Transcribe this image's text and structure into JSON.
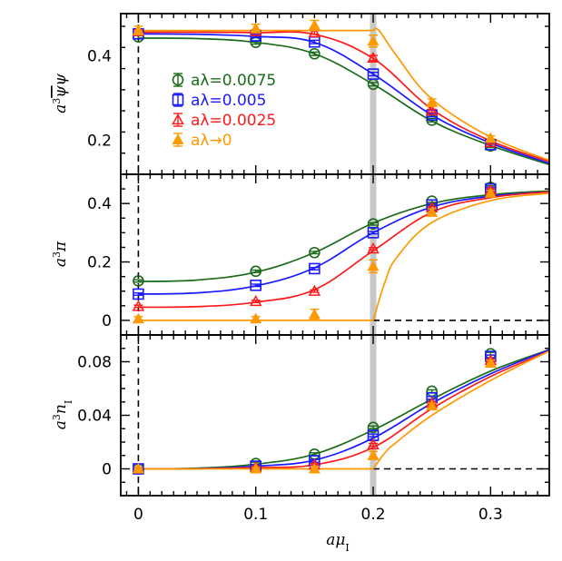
{
  "chart_data": {
    "type": "scatter",
    "x_axis": {
      "label": "aμ_I",
      "range": [
        -0.015,
        0.35
      ],
      "ticks": [
        0,
        0.1,
        0.2,
        0.3
      ],
      "tick_labels": [
        "0",
        "0.1",
        "0.2",
        "0.3"
      ]
    },
    "critical_point": 0.2,
    "colors": {
      "l0075": "#1a6b1a",
      "l005": "#1a1aff",
      "l0025": "#ff1a1a",
      "l0": "#ff9900",
      "band": "#c8c8c8"
    },
    "legend": [
      {
        "key": "l0075",
        "label": "aλ=0.0075"
      },
      {
        "key": "l005",
        "label": "aλ=0.005"
      },
      {
        "key": "l0025",
        "label": "aλ=0.0025"
      },
      {
        "key": "l0",
        "label": "aλ→0"
      }
    ],
    "panels": [
      {
        "id": "pbp",
        "ylabel": "a³ψ̄ψ",
        "ylim": [
          0.12,
          0.5
        ],
        "yticks": [
          0.2,
          0.4
        ],
        "ytick_labels": [
          "0.2",
          "0.4"
        ],
        "x": [
          0,
          0.1,
          0.15,
          0.2,
          0.25,
          0.3
        ],
        "series": [
          {
            "key": "l0075",
            "marker": "circle",
            "values": [
              0.445,
              0.432,
              0.405,
              0.333,
              0.248,
              0.187
            ],
            "err": [
              0.004,
              0.004,
              0.004,
              0.004,
              0.004,
              0.004
            ]
          },
          {
            "key": "l005",
            "marker": "square",
            "values": [
              0.452,
              0.447,
              0.433,
              0.357,
              0.26,
              0.19
            ],
            "err": [
              0.004,
              0.004,
              0.004,
              0.004,
              0.004,
              0.004
            ]
          },
          {
            "key": "l0025",
            "marker": "triangle",
            "values": [
              0.458,
              0.458,
              0.455,
              0.395,
              0.27,
              0.195
            ],
            "err": [
              0.004,
              0.004,
              0.004,
              0.006,
              0.004,
              0.004
            ]
          },
          {
            "key": "l0",
            "marker": "filled-triangle",
            "values": [
              0.46,
              0.465,
              0.472,
              0.435,
              0.29,
              0.205
            ],
            "err": [
              0.01,
              0.01,
              0.012,
              0.014,
              0.008,
              0.006
            ]
          }
        ],
        "curves": [
          {
            "key": "l0075",
            "x": [
              0,
              0.05,
              0.1,
              0.15,
              0.2,
              0.25,
              0.3,
              0.35
            ],
            "y": [
              0.442,
              0.441,
              0.432,
              0.405,
              0.333,
              0.246,
              0.188,
              0.143
            ]
          },
          {
            "key": "l005",
            "x": [
              0,
              0.05,
              0.1,
              0.15,
              0.2,
              0.25,
              0.3,
              0.35
            ],
            "y": [
              0.452,
              0.451,
              0.446,
              0.432,
              0.357,
              0.26,
              0.194,
              0.146
            ]
          },
          {
            "key": "l0025",
            "x": [
              0,
              0.05,
              0.1,
              0.15,
              0.2,
              0.25,
              0.3,
              0.35
            ],
            "y": [
              0.456,
              0.456,
              0.455,
              0.451,
              0.394,
              0.274,
              0.199,
              0.15
            ]
          },
          {
            "key": "l0",
            "x": [
              0,
              0.1,
              0.2,
              0.205,
              0.22,
              0.25,
              0.3,
              0.35
            ],
            "y": [
              0.46,
              0.46,
              0.46,
              0.46,
              0.4,
              0.298,
              0.208,
              0.153
            ]
          }
        ]
      },
      {
        "id": "pi",
        "ylabel": "a³π",
        "ylim": [
          -0.05,
          0.5
        ],
        "yticks": [
          0,
          0.2,
          0.4
        ],
        "ytick_labels": [
          "0",
          "0.2",
          "0.4"
        ],
        "zero_line": true,
        "x": [
          0,
          0.1,
          0.15,
          0.2,
          0.25,
          0.3
        ],
        "series": [
          {
            "key": "l0075",
            "marker": "circle",
            "values": [
              0.135,
              0.168,
              0.232,
              0.33,
              0.408,
              0.455
            ],
            "err": [
              0.004,
              0.004,
              0.004,
              0.004,
              0.004,
              0.006
            ]
          },
          {
            "key": "l005",
            "marker": "square",
            "values": [
              0.09,
              0.12,
              0.177,
              0.3,
              0.395,
              0.45
            ],
            "err": [
              0.004,
              0.004,
              0.004,
              0.004,
              0.004,
              0.006
            ]
          },
          {
            "key": "l0025",
            "marker": "triangle",
            "values": [
              0.048,
              0.065,
              0.1,
              0.245,
              0.385,
              0.445
            ],
            "err": [
              0.004,
              0.004,
              0.004,
              0.004,
              0.004,
              0.006
            ]
          },
          {
            "key": "l0",
            "marker": "filled-triangle",
            "values": [
              0.005,
              0.005,
              0.02,
              0.185,
              0.37,
              0.435
            ],
            "err": [
              0.008,
              0.008,
              0.018,
              0.022,
              0.012,
              0.01
            ]
          }
        ],
        "curves": [
          {
            "key": "l0075",
            "x": [
              0,
              0.05,
              0.1,
              0.15,
              0.2,
              0.25,
              0.3,
              0.35
            ],
            "y": [
              0.133,
              0.138,
              0.165,
              0.232,
              0.333,
              0.4,
              0.43,
              0.443
            ]
          },
          {
            "key": "l005",
            "x": [
              0,
              0.05,
              0.1,
              0.15,
              0.2,
              0.25,
              0.3,
              0.35
            ],
            "y": [
              0.09,
              0.094,
              0.118,
              0.18,
              0.3,
              0.388,
              0.425,
              0.44
            ]
          },
          {
            "key": "l0025",
            "x": [
              0,
              0.05,
              0.1,
              0.15,
              0.2,
              0.25,
              0.3,
              0.35
            ],
            "y": [
              0.045,
              0.047,
              0.062,
              0.105,
              0.238,
              0.37,
              0.42,
              0.44
            ]
          },
          {
            "key": "l0",
            "x": [
              0,
              0.1,
              0.2,
              0.21,
              0.22,
              0.25,
              0.3,
              0.35
            ],
            "y": [
              0,
              0,
              0,
              0.13,
              0.215,
              0.335,
              0.41,
              0.435
            ]
          }
        ]
      },
      {
        "id": "nI",
        "ylabel": "a³n_I",
        "ylim": [
          -0.02,
          0.1
        ],
        "yticks": [
          0,
          0.04,
          0.08
        ],
        "ytick_labels": [
          "0",
          "0.04",
          "0.08"
        ],
        "zero_line": true,
        "x": [
          0,
          0.1,
          0.15,
          0.2,
          0.25,
          0.3
        ],
        "series": [
          {
            "key": "l0075",
            "marker": "circle",
            "values": [
              0.0,
              0.004,
              0.011,
              0.031,
              0.058,
              0.086
            ],
            "err": [
              0.001,
              0.001,
              0.001,
              0.001,
              0.001,
              0.001
            ]
          },
          {
            "key": "l005",
            "marker": "square",
            "values": [
              0.0,
              0.002,
              0.006,
              0.025,
              0.053,
              0.084
            ],
            "err": [
              0.001,
              0.001,
              0.001,
              0.001,
              0.001,
              0.001
            ]
          },
          {
            "key": "l0025",
            "marker": "triangle",
            "values": [
              0.0,
              0.001,
              0.003,
              0.018,
              0.049,
              0.081
            ],
            "err": [
              0.001,
              0.001,
              0.001,
              0.001,
              0.001,
              0.001
            ]
          },
          {
            "key": "l0",
            "marker": "filled-triangle",
            "values": [
              0.0,
              0.0,
              0.0,
              0.01,
              0.047,
              0.079
            ],
            "err": [
              0.001,
              0.001,
              0.002,
              0.003,
              0.002,
              0.002
            ]
          }
        ],
        "curves": [
          {
            "key": "l0075",
            "x": [
              0,
              0.05,
              0.1,
              0.15,
              0.2,
              0.25,
              0.3,
              0.35
            ],
            "y": [
              0,
              0.0005,
              0.0035,
              0.011,
              0.029,
              0.052,
              0.073,
              0.089
            ]
          },
          {
            "key": "l005",
            "x": [
              0,
              0.05,
              0.1,
              0.15,
              0.2,
              0.25,
              0.3,
              0.35
            ],
            "y": [
              0,
              0.0002,
              0.002,
              0.0065,
              0.023,
              0.049,
              0.071,
              0.089
            ]
          },
          {
            "key": "l0025",
            "x": [
              0,
              0.05,
              0.1,
              0.15,
              0.2,
              0.25,
              0.3,
              0.35
            ],
            "y": [
              0,
              0.0001,
              0.001,
              0.003,
              0.016,
              0.045,
              0.069,
              0.088
            ]
          },
          {
            "key": "l0",
            "x": [
              0,
              0.1,
              0.2,
              0.21,
              0.22,
              0.25,
              0.3,
              0.35
            ],
            "y": [
              0,
              0,
              0,
              0.012,
              0.02,
              0.04,
              0.066,
              0.088
            ]
          }
        ]
      }
    ]
  }
}
